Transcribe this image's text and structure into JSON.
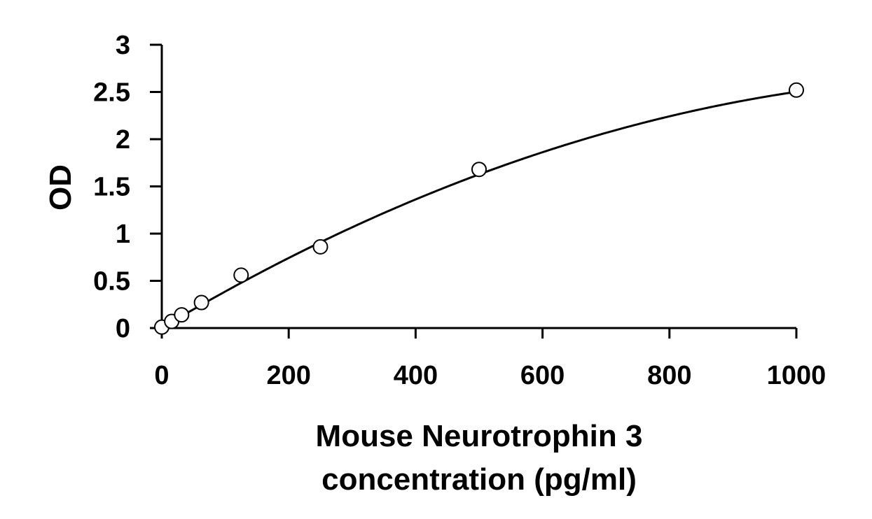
{
  "chart_data": {
    "type": "scatter",
    "title": "",
    "xlabel_lines": [
      "Mouse Neurotrophin 3",
      "concentration (pg/ml)"
    ],
    "ylabel": "OD",
    "xlim": [
      0,
      1000
    ],
    "ylim": [
      0,
      3
    ],
    "x_ticks": [
      0,
      200,
      400,
      600,
      800,
      1000
    ],
    "y_ticks": [
      0,
      0.5,
      1,
      1.5,
      2,
      2.5,
      3
    ],
    "x_tick_labels": [
      "0",
      "200",
      "400",
      "600",
      "800",
      "1000"
    ],
    "y_tick_labels": [
      "0",
      "0.5",
      "1",
      "1.5",
      "2",
      "2.5",
      "3"
    ],
    "grid": false,
    "legend": "none",
    "series": [
      {
        "x": [
          0,
          15.6,
          31.25,
          62.5,
          125,
          250,
          500,
          1000
        ],
        "y": [
          0.01,
          0.07,
          0.14,
          0.27,
          0.56,
          0.86,
          1.68,
          2.52
        ],
        "marker": "open-circle",
        "trendline": "polynomial",
        "trendline_coeffs": [
          0.002,
          0.004,
          -1.5e-06
        ]
      }
    ],
    "colors": {
      "axis": "#000000",
      "marker": "#000000",
      "line": "#000000"
    }
  }
}
